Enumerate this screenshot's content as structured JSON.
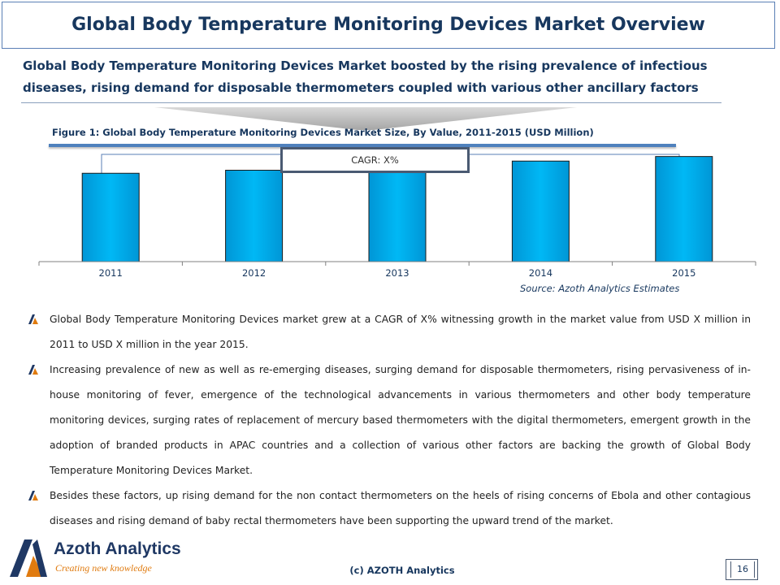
{
  "title": "Global Body Temperature Monitoring Devices Market Overview",
  "subheading": "Global Body Temperature Monitoring Devices Market boosted by the rising prevalence of infectious diseases, rising demand for disposable thermometers coupled with various other ancillary factors",
  "figure_caption": "Figure 1: Global Body Temperature Monitoring Devices Market Size, By Value, 2011-2015 (USD Million)",
  "cagr_label": "CAGR: X%",
  "source": "Source: Azoth Analytics Estimates",
  "chart_data": {
    "type": "bar",
    "categories": [
      "2011",
      "2012",
      "2013",
      "2014",
      "2015"
    ],
    "values": [
      58,
      60,
      63,
      66,
      69
    ],
    "ylim": [
      0,
      80
    ],
    "grid": false,
    "colors": {
      "bar": "#00b0f0",
      "bar_border": "#1a1a1a"
    }
  },
  "bullets": [
    "Global Body Temperature Monitoring Devices market  grew at a CAGR of X% witnessing growth in the market value from USD X million in 2011 to USD X million in the year 2015.",
    "Increasing prevalence of new as well as re-emerging diseases, surging demand for disposable thermometers, rising pervasiveness of in-house monitoring of fever, emergence of the technological advancements in various thermometers and other body temperature monitoring devices, surging rates of replacement of mercury based thermometers with the digital thermometers, emergent growth in the adoption of branded products in APAC countries and a collection of various other factors are backing the growth of Global Body Temperature Monitoring Devices Market.",
    "Besides these factors, up rising demand for the non contact thermometers on the heels of rising concerns of Ebola and other contagious diseases and rising demand of baby rectal thermometers have been supporting the upward trend of the market."
  ],
  "footer": {
    "copyright": "(c) AZOTH Analytics",
    "page_number": "16"
  },
  "logo": {
    "name": "Azoth Analytics",
    "tagline": "Creating new knowledge"
  },
  "colors": {
    "heading": "#17375e",
    "accent": "#4f81bd",
    "logo_orange": "#e07b10"
  }
}
